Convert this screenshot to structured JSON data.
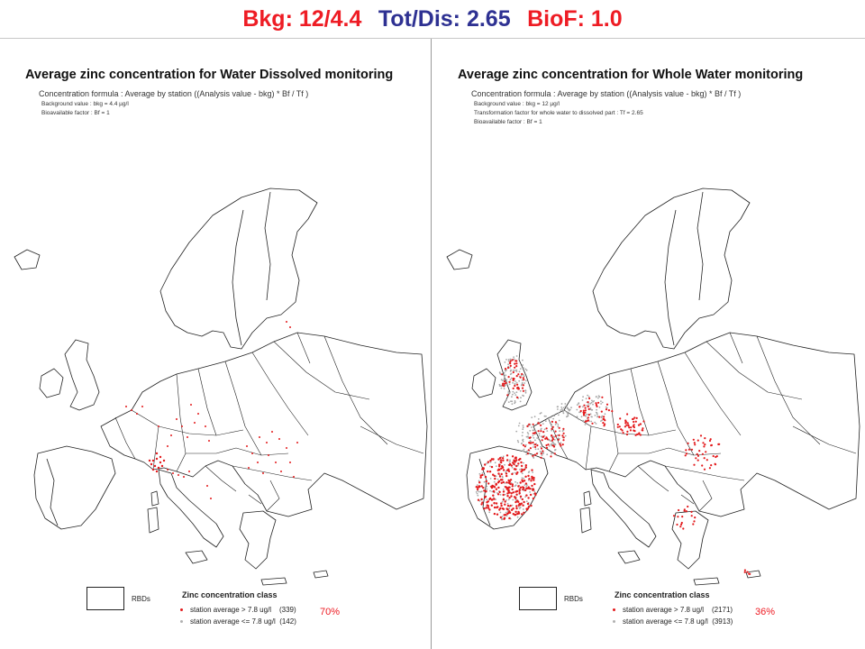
{
  "header": {
    "bkg": "Bkg: 12/4.4",
    "totdis": "Tot/Dis: 2.65",
    "biof": "BioF: 1.0"
  },
  "colors": {
    "header_red": "#ee1c24",
    "header_blue": "#2e3192",
    "station_high": "#e31a1c",
    "station_low": "#b0b0b0"
  },
  "left_panel": {
    "title": "Average zinc concentration for Water Dissolved monitoring",
    "formula": "Concentration formula : Average by station  ((Analysis value - bkg) * Bf / Tf )",
    "params": [
      "Background value : bkg = 4.4 µg/l",
      "Bioavailable factor : Bf = 1"
    ],
    "legend": {
      "rbd": "RBDs",
      "title": "Zinc concentration class",
      "high_label": "station average > 7.8 ug/l",
      "high_count": "(339)",
      "low_label": "station average <= 7.8 ug/l",
      "low_count": "(142)",
      "percent": "70%"
    }
  },
  "right_panel": {
    "title": "Average zinc concentration for Whole Water monitoring",
    "formula": "Concentration formula : Average by station  ((Analysis value - bkg) * Bf / Tf )",
    "params": [
      "Background value : bkg = 12 µg/l",
      "Transformation factor for whole water to dissolved part : Tf = 2.65",
      "Bioavailable factor : Bf = 1"
    ],
    "legend": {
      "rbd": "RBDs",
      "title": "Zinc concentration class",
      "high_label": "station average > 7.8 ug/l",
      "high_count": "(2171)",
      "low_label": "station average <= 7.8 ug/l",
      "low_count": "(3913)",
      "percent": "36%"
    }
  }
}
